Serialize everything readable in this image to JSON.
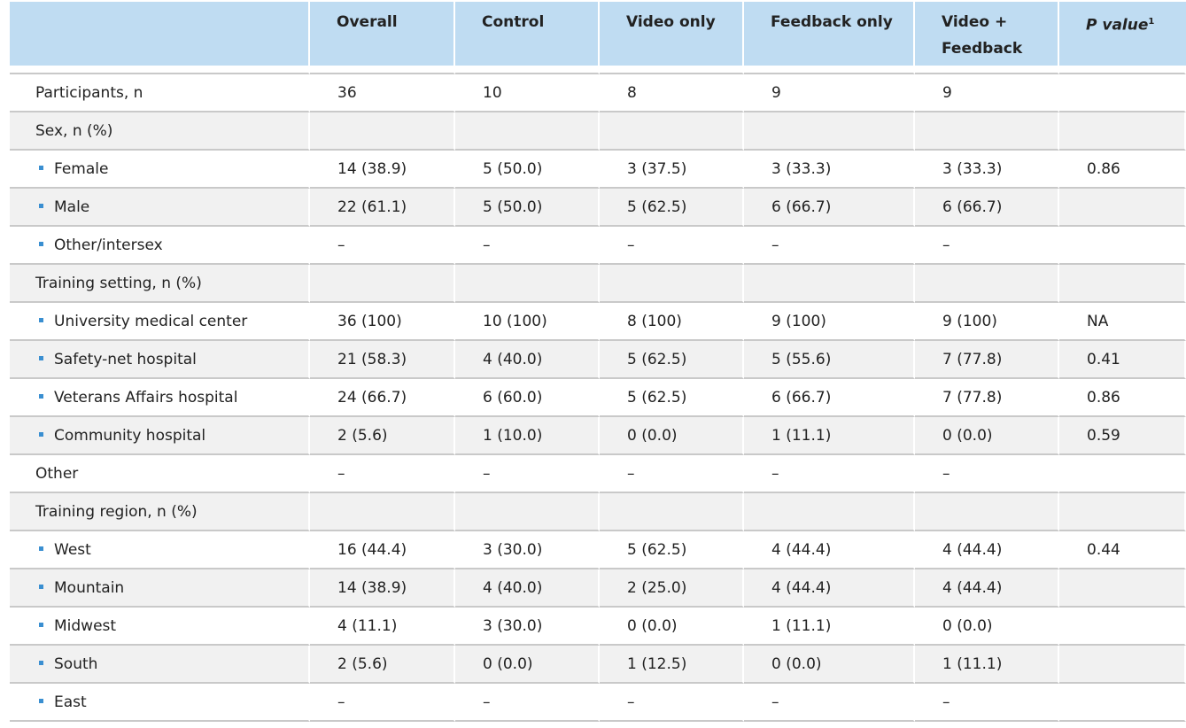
{
  "table": {
    "headers": [
      "",
      "Overall",
      "Control",
      "Video only",
      "Feedback only",
      "Video +",
      "P value"
    ],
    "header_line2": {
      "video_feedback": "Feedback"
    },
    "pvalue_superscript": "1",
    "rows": [
      {
        "label": "Participants, n",
        "bullet": false,
        "cells": [
          "36",
          "10",
          "8",
          "9",
          "9",
          ""
        ]
      },
      {
        "label": "Sex, n (%)",
        "bullet": false,
        "cells": [
          "",
          "",
          "",
          "",
          "",
          ""
        ]
      },
      {
        "label": "Female",
        "bullet": true,
        "cells": [
          "14 (38.9)",
          "5 (50.0)",
          "3 (37.5)",
          "3 (33.3)",
          "3 (33.3)",
          "0.86"
        ]
      },
      {
        "label": "Male",
        "bullet": true,
        "cells": [
          "22 (61.1)",
          "5 (50.0)",
          "5 (62.5)",
          "6 (66.7)",
          "6 (66.7)",
          ""
        ]
      },
      {
        "label": "Other/intersex",
        "bullet": true,
        "cells": [
          "–",
          "–",
          "–",
          "–",
          "–",
          ""
        ]
      },
      {
        "label": "Training setting, n (%)",
        "bullet": false,
        "cells": [
          "",
          "",
          "",
          "",
          "",
          ""
        ]
      },
      {
        "label": "University medical center",
        "bullet": true,
        "cells": [
          "36 (100)",
          "10 (100)",
          "8 (100)",
          "9 (100)",
          "9 (100)",
          "NA"
        ]
      },
      {
        "label": "Safety-net hospital",
        "bullet": true,
        "cells": [
          "21 (58.3)",
          "4 (40.0)",
          "5 (62.5)",
          "5 (55.6)",
          "7 (77.8)",
          "0.41"
        ]
      },
      {
        "label": "Veterans Affairs hospital",
        "bullet": true,
        "cells": [
          "24 (66.7)",
          "6 (60.0)",
          "5 (62.5)",
          "6 (66.7)",
          "7 (77.8)",
          "0.86"
        ]
      },
      {
        "label": "Community hospital",
        "bullet": true,
        "cells": [
          "2 (5.6)",
          "1 (10.0)",
          "0 (0.0)",
          "1 (11.1)",
          "0 (0.0)",
          "0.59"
        ]
      },
      {
        "label": "Other",
        "bullet": false,
        "cells": [
          "–",
          "–",
          "–",
          "–",
          "–",
          ""
        ]
      },
      {
        "label": "Training region, n (%)",
        "bullet": false,
        "cells": [
          "",
          "",
          "",
          "",
          "",
          ""
        ]
      },
      {
        "label": "West",
        "bullet": true,
        "cells": [
          "16 (44.4)",
          "3 (30.0)",
          "5 (62.5)",
          "4 (44.4)",
          "4 (44.4)",
          "0.44"
        ]
      },
      {
        "label": "Mountain",
        "bullet": true,
        "cells": [
          "14 (38.9)",
          "4 (40.0)",
          "2 (25.0)",
          "4 (44.4)",
          "4 (44.4)",
          ""
        ]
      },
      {
        "label": "Midwest",
        "bullet": true,
        "cells": [
          "4 (11.1)",
          "3 (30.0)",
          "0 (0.0)",
          "1 (11.1)",
          "0 (0.0)",
          ""
        ]
      },
      {
        "label": "South",
        "bullet": true,
        "cells": [
          "2 (5.6)",
          "0 (0.0)",
          "1 (12.5)",
          "0 (0.0)",
          "1 (11.1)",
          ""
        ]
      },
      {
        "label": "East",
        "bullet": true,
        "cells": [
          "–",
          "–",
          "–",
          "–",
          "–",
          ""
        ]
      }
    ]
  }
}
